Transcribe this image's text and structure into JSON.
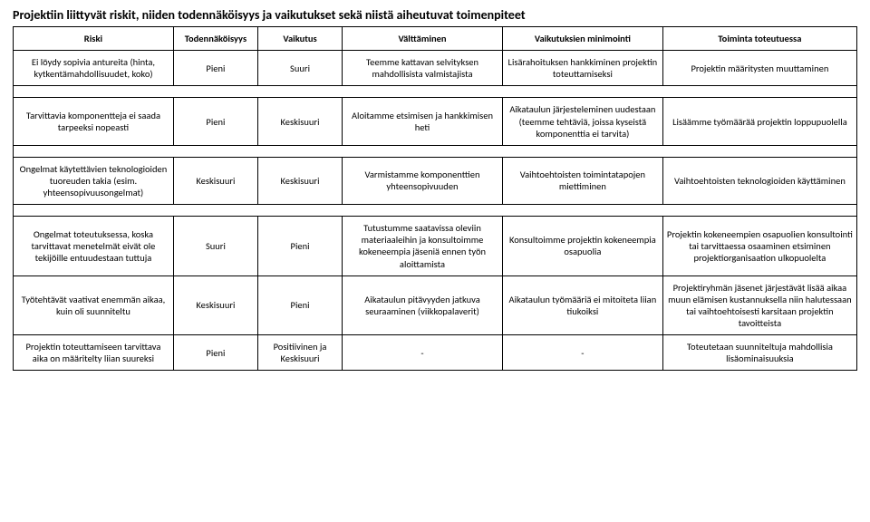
{
  "title": "Projektiin liittyvät riskit, niiden todennäköisyys ja vaikutukset sekä niistä aiheutuvat toimenpiteet",
  "columns": [
    "Riski",
    "Todennäköisyys",
    "Vaikutus",
    "Välttäminen",
    "Vaikutuksien minimointi",
    "Toiminta toteutuessa"
  ],
  "rows": [
    {
      "riski": "Ei löydy sopivia antureita (hinta, kytkentämahdollisuudet, koko)",
      "todennakoisyys": "Pieni",
      "vaikutus": "Suuri",
      "valttaminen": "Teemme kattavan selvityksen mahdollisista valmistajista",
      "minimointi": "Lisärahoituksen hankkiminen projektin toteuttamiseksi",
      "toiminta": "Projektin määritysten muuttaminen"
    },
    {
      "riski": "Tarvittavia komponentteja ei saada tarpeeksi nopeasti",
      "todennakoisyys": "Pieni",
      "vaikutus": "Keskisuuri",
      "valttaminen": "Aloitamme etsimisen ja hankkimisen heti",
      "minimointi": "Aikataulun järjesteleminen uudestaan (teemme tehtäviä, joissa kyseistä komponenttia ei tarvita)",
      "toiminta": "Lisäämme työmäärää projektin loppupuolella"
    },
    {
      "riski": "Ongelmat käytettävien teknologioiden tuoreuden takia (esim. yhteensopivuusongelmat)",
      "todennakoisyys": "Keskisuuri",
      "vaikutus": "Keskisuuri",
      "valttaminen": "Varmistamme komponenttien yhteensopivuuden",
      "minimointi": "Vaihtoehtoisten toimintatapojen miettiminen",
      "toiminta": "Vaihtoehtoisten teknologioiden käyttäminen"
    },
    {
      "riski": "Ongelmat toteutuksessa, koska tarvittavat menetelmät eivät ole tekijöille entuudestaan tuttuja",
      "todennakoisyys": "Suuri",
      "vaikutus": "Pieni",
      "valttaminen": "Tutustumme saatavissa oleviin materiaaleihin ja konsultoimme kokeneempia jäseniä ennen työn aloittamista",
      "minimointi": "Konsultoimme projektin kokeneempia osapuolia",
      "toiminta": "Projektin kokeneempien osapuolien konsultointi tai tarvittaessa osaaminen etsiminen projektiorganisaation ulkopuolelta"
    },
    {
      "riski": "Työtehtävät vaativat enemmän aikaa, kuin oli suunniteltu",
      "todennakoisyys": "Keskisuuri",
      "vaikutus": "Pieni",
      "valttaminen": "Aikataulun pitävyyden jatkuva seuraaminen (viikkopalaverit)",
      "minimointi": "Aikataulun työmääriä ei mitoiteta liian tiukoiksi",
      "toiminta": "Projektiryhmän jäsenet järjestävät lisää aikaa muun elämisen kustannuksella niin halutessaan tai vaihtoehtoisesti karsitaan projektin tavoitteista"
    },
    {
      "riski": "Projektin toteuttamiseen tarvittava aika on määritelty liian suureksi",
      "todennakoisyys": "Pieni",
      "vaikutus": "Positiivinen ja Keskisuuri",
      "valttaminen": "-",
      "minimointi": "-",
      "toiminta": "Toteutetaan suunniteltuja mahdollisia lisäominaisuuksia"
    }
  ],
  "style": {
    "font_family": "Calibri",
    "title_fontsize_pt": 11,
    "header_fontsize_pt": 9,
    "body_fontsize_pt": 8,
    "text_color": "#000000",
    "background_color": "#ffffff",
    "border_color": "#000000",
    "column_widths_pct": [
      19,
      10,
      10,
      19,
      19,
      23
    ],
    "group_row_spans": [
      1,
      1,
      1,
      3
    ]
  }
}
